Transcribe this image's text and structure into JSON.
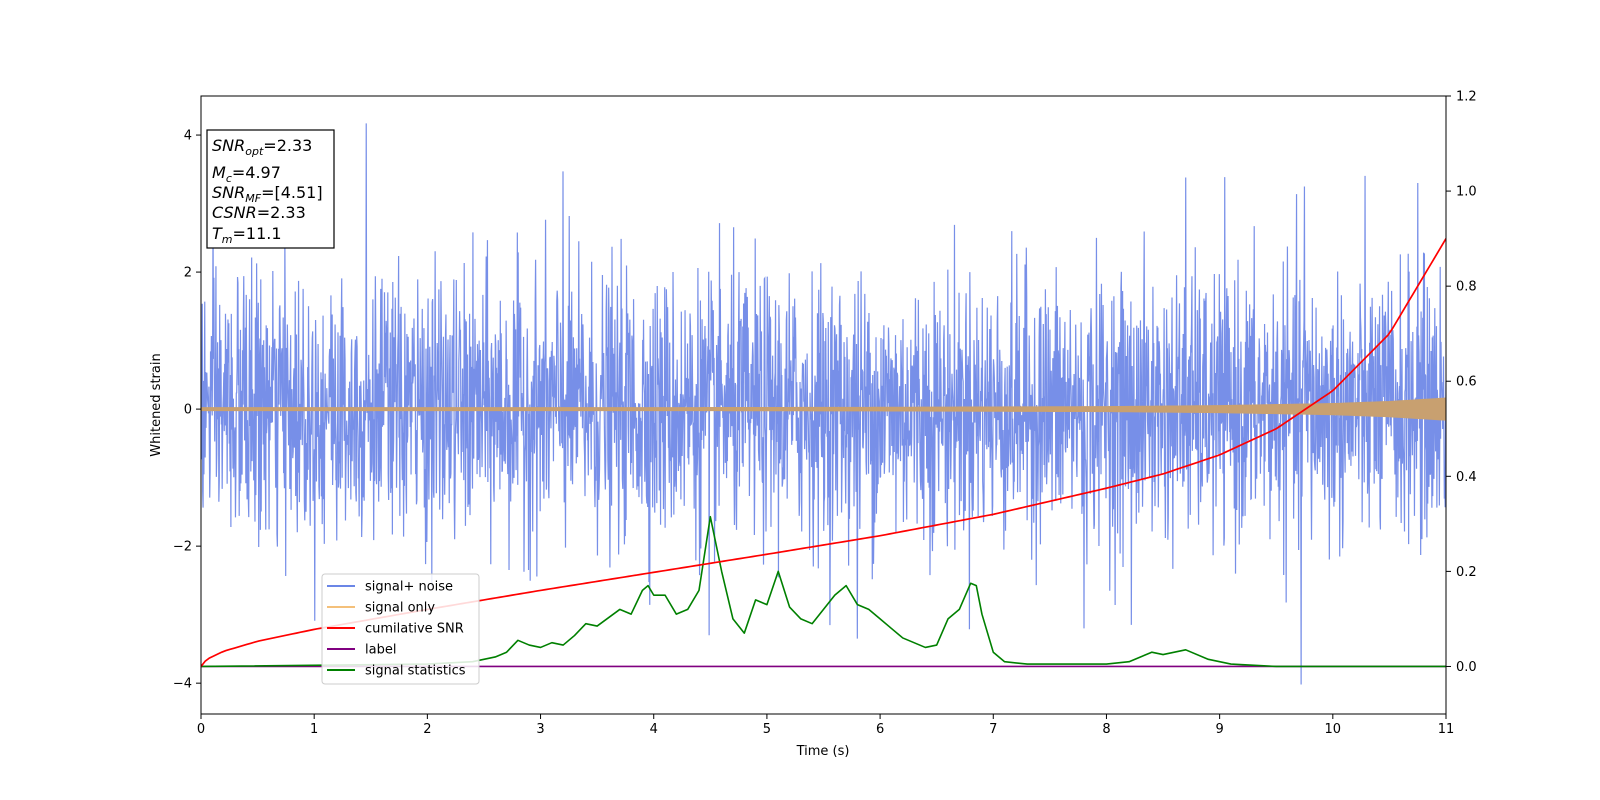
{
  "chart_data": {
    "type": "line",
    "xlabel": "Time (s)",
    "ylabel": "Whitened strain",
    "xlim": [
      0,
      11
    ],
    "ylim": [
      -4.45,
      4.57
    ],
    "y2lim": [
      -0.1,
      1.2
    ],
    "xticks": [
      "0",
      "1",
      "2",
      "3",
      "4",
      "5",
      "6",
      "7",
      "8",
      "9",
      "10",
      "11"
    ],
    "yticks": [
      "4",
      "2",
      "0",
      "−2",
      "−4"
    ],
    "ytick_values": [
      4,
      2,
      0,
      -2,
      -4
    ],
    "y2ticks": [
      "1.2",
      "1.0",
      "0.8",
      "0.6",
      "0.4",
      "0.2",
      "0.0"
    ],
    "y2tick_values": [
      1.2,
      1.0,
      0.8,
      0.6,
      0.4,
      0.2,
      0.0
    ],
    "stats_box": [
      {
        "var": "SNR",
        "sub": "opt",
        "value": "=2.33"
      },
      {
        "var": "M",
        "sub": "c",
        "value": "=4.97"
      },
      {
        "var": "SNR",
        "sub": "MF",
        "value": "=[4.51]"
      },
      {
        "var": "CSNR",
        "sub": "",
        "value": "=2.33"
      },
      {
        "var": "T",
        "sub": "m",
        "value": "=11.1"
      }
    ],
    "legend": [
      {
        "name": "signal+ noise",
        "color": "#6b86e6"
      },
      {
        "name": "signal only",
        "color": "#f4c07a"
      },
      {
        "name": "cumilative SNR",
        "color": "#ff0000"
      },
      {
        "name": "label",
        "color": "#800080"
      },
      {
        "name": "signal statistics",
        "color": "#008000"
      }
    ],
    "legend_position": "lower-left",
    "series": [
      {
        "name": "signal+ noise",
        "axis": "left",
        "color": "#6b86e6",
        "kind": "dense noise trace, amplitude roughly ±2.5 with spikes to about 4.2 and −4.0",
        "spikes": [
          [
            1.46,
            4.17
          ],
          [
            3.2,
            3.47
          ],
          [
            4.49,
            -3.3
          ],
          [
            5.8,
            -3.35
          ],
          [
            7.8,
            -3.2
          ],
          [
            8.22,
            -3.15
          ],
          [
            9.72,
            -4.02
          ],
          [
            9.75,
            3.25
          ],
          [
            8.7,
            3.38
          ],
          [
            10.75,
            3.3
          ]
        ]
      },
      {
        "name": "signal only",
        "axis": "left",
        "color": "#c8a070",
        "kind": "chirp envelope, amplitude growing with time",
        "envelope": {
          "x": [
            0,
            2,
            4,
            6,
            7,
            8,
            9,
            10,
            10.5,
            11
          ],
          "y": [
            0.02,
            0.02,
            0.02,
            0.025,
            0.03,
            0.035,
            0.05,
            0.08,
            0.11,
            0.16
          ]
        }
      },
      {
        "name": "cumilative SNR",
        "axis": "right",
        "color": "#ff0000",
        "x": [
          0,
          0.05,
          0.2,
          0.5,
          1,
          2,
          3,
          4,
          5,
          6,
          7,
          8,
          8.5,
          9,
          9.5,
          10,
          10.5,
          11
        ],
        "values": [
          0.0,
          0.015,
          0.032,
          0.053,
          0.078,
          0.12,
          0.16,
          0.198,
          0.236,
          0.275,
          0.32,
          0.375,
          0.405,
          0.445,
          0.5,
          0.58,
          0.7,
          0.9
        ]
      },
      {
        "name": "label",
        "axis": "right",
        "color": "#800080",
        "x": [
          0,
          11
        ],
        "values": [
          0.0,
          0.0
        ]
      },
      {
        "name": "signal statistics",
        "axis": "right",
        "color": "#008000",
        "x": [
          0,
          2.0,
          2.4,
          2.6,
          2.7,
          2.8,
          2.9,
          3.0,
          3.1,
          3.2,
          3.3,
          3.4,
          3.5,
          3.7,
          3.8,
          3.9,
          3.95,
          4.0,
          4.1,
          4.2,
          4.3,
          4.4,
          4.5,
          4.6,
          4.7,
          4.8,
          4.9,
          5.0,
          5.1,
          5.2,
          5.3,
          5.4,
          5.5,
          5.6,
          5.7,
          5.8,
          5.9,
          6.0,
          6.1,
          6.2,
          6.3,
          6.4,
          6.5,
          6.6,
          6.7,
          6.8,
          6.85,
          6.9,
          7.0,
          7.1,
          7.3,
          8.0,
          8.2,
          8.4,
          8.5,
          8.7,
          8.9,
          9.1,
          9.5,
          10.0,
          11.0
        ],
        "values": [
          0.0,
          0.005,
          0.01,
          0.02,
          0.03,
          0.055,
          0.045,
          0.04,
          0.05,
          0.045,
          0.065,
          0.09,
          0.085,
          0.12,
          0.11,
          0.16,
          0.17,
          0.15,
          0.15,
          0.11,
          0.12,
          0.16,
          0.315,
          0.2,
          0.1,
          0.07,
          0.14,
          0.13,
          0.2,
          0.125,
          0.1,
          0.09,
          0.12,
          0.15,
          0.17,
          0.13,
          0.12,
          0.1,
          0.08,
          0.06,
          0.05,
          0.04,
          0.045,
          0.1,
          0.12,
          0.175,
          0.17,
          0.11,
          0.03,
          0.01,
          0.005,
          0.005,
          0.01,
          0.03,
          0.025,
          0.035,
          0.015,
          0.005,
          0.0,
          0.0,
          0.0
        ]
      }
    ]
  }
}
